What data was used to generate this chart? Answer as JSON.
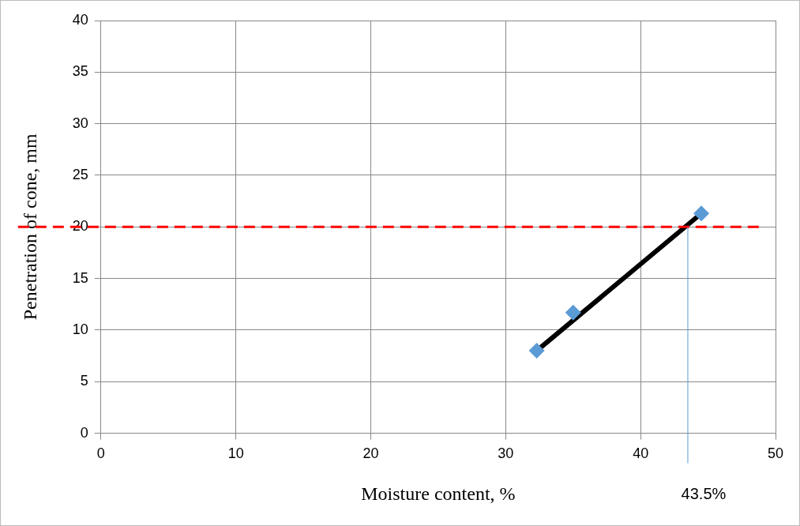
{
  "chart_data": {
    "type": "scatter",
    "xlabel": "Moisture content, %",
    "ylabel": "Penetration of cone, mm",
    "xlim": [
      0,
      50
    ],
    "xticks": [
      0,
      10,
      20,
      30,
      40,
      50
    ],
    "ylim": [
      0,
      40
    ],
    "yticks": [
      0,
      5,
      10,
      15,
      20,
      25,
      30,
      35,
      40
    ],
    "grid": true,
    "legend": false,
    "marker": "diamond",
    "series": [
      {
        "color": "#5b9bd5",
        "x": [
          32.3,
          35.0,
          44.5
        ],
        "values": [
          8.0,
          11.7,
          21.3
        ]
      },
      {
        "type": "line",
        "color": "#000000",
        "x": [
          32.3,
          44.5
        ],
        "values": [
          8.0,
          21.3
        ],
        "marker": "none"
      }
    ],
    "ref_lines": [
      {
        "axis": "y",
        "value": 20,
        "color": "#ff0000",
        "line_style": "dashed"
      },
      {
        "axis": "x",
        "value": 43.5,
        "label": "43.5%",
        "color": "#5b9bd5",
        "line_style": "solid"
      }
    ]
  }
}
